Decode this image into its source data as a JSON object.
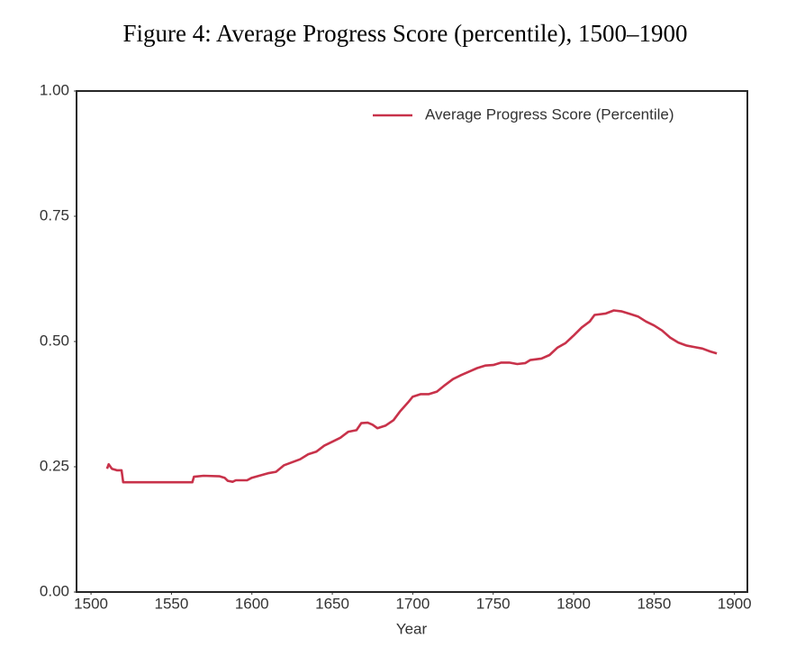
{
  "chart_data": {
    "type": "line",
    "title": "Figure 4: Average Progress Score (percentile), 1500–1900",
    "xlabel": "Year",
    "legend": "upper right",
    "grid": false,
    "xlim": [
      1491,
      1908
    ],
    "ylim": [
      0,
      1
    ],
    "xticks": [
      1500,
      1550,
      1600,
      1650,
      1700,
      1750,
      1800,
      1850,
      1900
    ],
    "yticks": [
      {
        "value": 0,
        "label": "0.00"
      },
      {
        "value": 0.25,
        "label": "0.25"
      },
      {
        "value": 0.5,
        "label": "0.50"
      },
      {
        "value": 0.75,
        "label": "0.75"
      },
      {
        "value": 1,
        "label": "1.00"
      }
    ],
    "x": [
      1510,
      1511,
      1513,
      1516,
      1519,
      1520,
      1563,
      1564,
      1570,
      1580,
      1583,
      1585,
      1588,
      1590,
      1597,
      1600,
      1610,
      1615,
      1620,
      1630,
      1635,
      1640,
      1645,
      1650,
      1655,
      1660,
      1665,
      1668,
      1672,
      1675,
      1678,
      1683,
      1688,
      1692,
      1697,
      1700,
      1705,
      1710,
      1715,
      1720,
      1725,
      1730,
      1735,
      1740,
      1745,
      1750,
      1755,
      1760,
      1765,
      1770,
      1773,
      1780,
      1785,
      1790,
      1795,
      1800,
      1805,
      1810,
      1813,
      1820,
      1825,
      1830,
      1835,
      1840,
      1845,
      1850,
      1855,
      1860,
      1865,
      1870,
      1875,
      1880,
      1885,
      1889
    ],
    "series": [
      {
        "name": "Average Progress Score (Percentile)",
        "color": "#c8324a",
        "values": [
          0.246,
          0.255,
          0.246,
          0.243,
          0.243,
          0.219,
          0.219,
          0.23,
          0.232,
          0.231,
          0.228,
          0.222,
          0.22,
          0.223,
          0.223,
          0.228,
          0.237,
          0.24,
          0.253,
          0.265,
          0.275,
          0.28,
          0.292,
          0.3,
          0.308,
          0.32,
          0.323,
          0.337,
          0.338,
          0.334,
          0.327,
          0.332,
          0.343,
          0.36,
          0.378,
          0.39,
          0.395,
          0.395,
          0.4,
          0.413,
          0.425,
          0.433,
          0.44,
          0.447,
          0.452,
          0.453,
          0.458,
          0.458,
          0.455,
          0.457,
          0.463,
          0.466,
          0.473,
          0.488,
          0.497,
          0.512,
          0.528,
          0.54,
          0.553,
          0.556,
          0.562,
          0.56,
          0.555,
          0.55,
          0.54,
          0.532,
          0.522,
          0.508,
          0.498,
          0.492,
          0.489,
          0.486,
          0.48,
          0.476
        ]
      }
    ]
  }
}
